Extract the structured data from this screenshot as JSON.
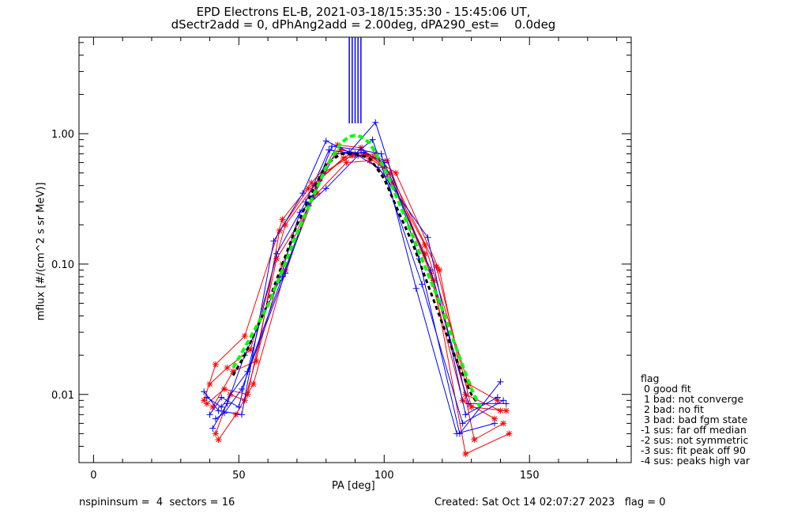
{
  "chart_data": {
    "type": "line",
    "title": "EPD Electrons EL-B, 2021-03-18/15:35:30 - 15:45:06 UT,",
    "subtitle": "dSectr2add = 0, dPhAng2add = 2.00deg, dPA290_est=    0.0deg",
    "xlabel": "PA [deg]",
    "ylabel": "mflux [#/(cm^2 s sr MeV)]",
    "xlim": [
      -5,
      185
    ],
    "ylim": [
      0.003,
      5.5
    ],
    "yscale": "log",
    "xticks": [
      "0",
      "50",
      "100",
      "150"
    ],
    "yticks": [
      "0.01",
      "0.10",
      "1.00"
    ],
    "grid": false,
    "colors": {
      "red": "#ff0000",
      "blue": "#0000ff",
      "fit": "#00ff00",
      "median": "#000000"
    },
    "vertical_markers": {
      "x": [
        88,
        89,
        90,
        91,
        92
      ],
      "y_from": 1.2,
      "y_to": 5.5,
      "color": "#0000ff"
    },
    "fit_curve": {
      "name": "fit",
      "x": [
        48,
        50,
        55,
        60,
        65,
        70,
        75,
        80,
        85,
        88,
        90,
        92,
        95,
        100,
        105,
        110,
        115,
        120,
        125,
        130,
        133
      ],
      "y": [
        0.016,
        0.019,
        0.03,
        0.048,
        0.09,
        0.17,
        0.31,
        0.55,
        0.84,
        0.95,
        0.97,
        0.95,
        0.85,
        0.55,
        0.3,
        0.16,
        0.085,
        0.045,
        0.022,
        0.011,
        0.008
      ]
    },
    "median_curve": {
      "x": [
        48,
        52,
        55,
        60,
        65,
        70,
        75,
        80,
        85,
        90,
        95,
        100,
        105,
        110,
        115,
        120,
        125,
        130,
        133
      ],
      "y": [
        0.014,
        0.02,
        0.028,
        0.05,
        0.1,
        0.2,
        0.35,
        0.58,
        0.7,
        0.7,
        0.65,
        0.45,
        0.25,
        0.14,
        0.07,
        0.035,
        0.018,
        0.01,
        0.008
      ]
    },
    "series": [
      {
        "color": "red",
        "x": [
          38,
          42,
          52,
          65,
          75,
          85,
          93,
          101,
          116,
          128,
          140
        ],
        "y": [
          0.009,
          0.017,
          0.028,
          0.22,
          0.42,
          0.75,
          0.7,
          0.62,
          0.085,
          0.01,
          0.0075
        ]
      },
      {
        "color": "red",
        "x": [
          40,
          46,
          54,
          66,
          76,
          84,
          92,
          100,
          114,
          127,
          138
        ],
        "y": [
          0.012,
          0.016,
          0.022,
          0.2,
          0.4,
          0.82,
          0.78,
          0.55,
          0.12,
          0.009,
          0.0065
        ]
      },
      {
        "color": "red",
        "x": [
          41,
          48,
          56,
          64,
          74,
          86,
          94,
          102,
          118,
          130,
          142
        ],
        "y": [
          0.008,
          0.015,
          0.018,
          0.18,
          0.38,
          0.65,
          0.68,
          0.5,
          0.095,
          0.008,
          0.0075
        ]
      },
      {
        "color": "red",
        "x": [
          39,
          45,
          53,
          63,
          77,
          87,
          95,
          103,
          117,
          128,
          143
        ],
        "y": [
          0.0085,
          0.011,
          0.01,
          0.11,
          0.35,
          0.6,
          0.62,
          0.42,
          0.075,
          0.0035,
          0.005
        ]
      },
      {
        "color": "red",
        "x": [
          42,
          47,
          52,
          65,
          78,
          88,
          96,
          104,
          119,
          131,
          141
        ],
        "y": [
          0.005,
          0.01,
          0.009,
          0.1,
          0.45,
          0.7,
          0.66,
          0.5,
          0.09,
          0.0045,
          0.006
        ]
      },
      {
        "color": "red",
        "x": [
          43,
          49,
          55,
          66,
          79,
          89,
          97,
          99,
          114,
          129,
          139
        ],
        "y": [
          0.0045,
          0.007,
          0.012,
          0.09,
          0.5,
          0.68,
          0.7,
          0.6,
          0.14,
          0.012,
          0.009
        ]
      },
      {
        "color": "blue",
        "x": [
          38,
          43,
          51,
          62,
          72,
          80,
          88,
          97,
          112,
          126,
          140
        ],
        "y": [
          0.0105,
          0.0075,
          0.007,
          0.15,
          0.35,
          0.88,
          0.72,
          1.22,
          0.11,
          0.005,
          0.0125
        ]
      },
      {
        "color": "blue",
        "x": [
          40,
          44,
          50,
          63,
          73,
          81,
          90,
          96,
          113,
          127,
          141
        ],
        "y": [
          0.007,
          0.0095,
          0.008,
          0.12,
          0.3,
          0.75,
          0.7,
          0.9,
          0.07,
          0.006,
          0.009
        ]
      },
      {
        "color": "blue",
        "x": [
          41,
          46,
          52,
          64,
          71,
          80,
          91,
          98,
          115,
          128,
          139
        ],
        "y": [
          0.0055,
          0.0085,
          0.02,
          0.075,
          0.25,
          0.38,
          0.68,
          0.55,
          0.16,
          0.007,
          0.0095
        ]
      },
      {
        "color": "blue",
        "x": [
          39,
          44,
          53,
          65,
          75,
          82,
          92,
          99,
          111,
          125,
          138
        ],
        "y": [
          0.0095,
          0.008,
          0.015,
          0.08,
          0.32,
          0.8,
          0.75,
          0.7,
          0.065,
          0.005,
          0.006
        ]
      },
      {
        "color": "blue",
        "x": [
          42,
          45,
          51,
          66,
          74,
          83,
          93,
          100,
          116,
          129,
          142
        ],
        "y": [
          0.0065,
          0.0072,
          0.011,
          0.085,
          0.28,
          0.7,
          0.72,
          0.6,
          0.09,
          0.0085,
          0.0085
        ]
      }
    ]
  },
  "legend": {
    "title": "flag",
    "items": [
      " 0 good fit",
      " 1 bad: not converge",
      " 2 bad: no fit",
      " 3 bad: bad fgm state",
      "-1 sus: far off median",
      "-2 sus: not symmetric",
      "-3 sus: fit peak off 90",
      "-4 sus: peaks high var"
    ]
  },
  "footer": {
    "left": "nspininsum =  4  sectors = 16",
    "right": "Created: Sat Oct 14 02:07:27 2023   flag = 0"
  }
}
